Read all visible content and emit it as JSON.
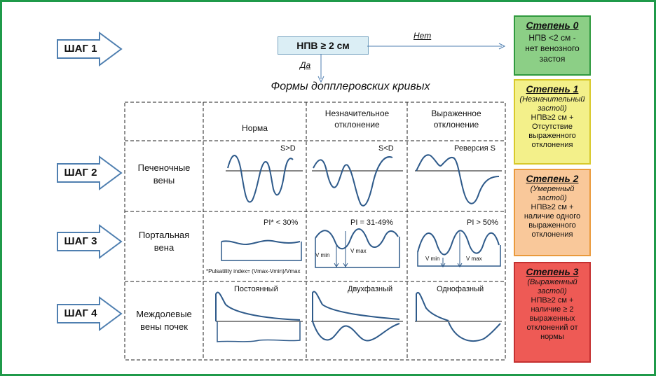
{
  "steps": [
    "ШАГ 1",
    "ШАГ 2",
    "ШАГ 3",
    "ШАГ 4"
  ],
  "npv_box": "НПВ ≥ 2 см",
  "no_label": "Нет",
  "yes_label": "Да",
  "forms_title": "Формы допплеровских кривых",
  "columns": [
    "Норма",
    "Незначительное отклонение",
    "Выраженное отклонение"
  ],
  "rows": [
    "Печеночные вены",
    "Портальная вена",
    "Междолевые вены почек"
  ],
  "hepatic_labels": [
    "S>D",
    "S<D",
    "Реверсия S"
  ],
  "portal_labels": [
    "PI* < 30%",
    "PI = 31-49%",
    "PI > 50%"
  ],
  "pulsatility_note": "*Pulsatility index= (Vmax-Vmin)/Vmax",
  "vmin": "V min",
  "vmax": "V max",
  "renal_labels": [
    "Постоянный",
    "Двухфазный",
    "Однофазный"
  ],
  "degrees": [
    {
      "title": "Степень 0",
      "sub": "",
      "text": "НПВ <2 см - нет венозного застоя",
      "bg": "#8ccf86",
      "border": "#2f9a3e"
    },
    {
      "title": "Степень 1",
      "sub": "(Незначительный застой)",
      "text": "НПВ≥2 см + Отсутствие выраженного отклонения",
      "bg": "#f3f08a",
      "border": "#d8c92a"
    },
    {
      "title": "Степень 2",
      "sub": "(Умеренный застой)",
      "text": "НПВ≥2 см + наличие одного выраженного отклонения",
      "bg": "#f9c89a",
      "border": "#ea9a3c"
    },
    {
      "title": "Степень 3",
      "sub": "(Выраженный застой)",
      "text": "НПВ≥2 см + наличие ≥ 2 выраженных отклонений от нормы",
      "bg": "#ee5a55",
      "border": "#c43030"
    }
  ],
  "colors": {
    "frame": "#1f9a4a",
    "curve": "#2e5a8a",
    "arrow": "#4f7fb0"
  }
}
